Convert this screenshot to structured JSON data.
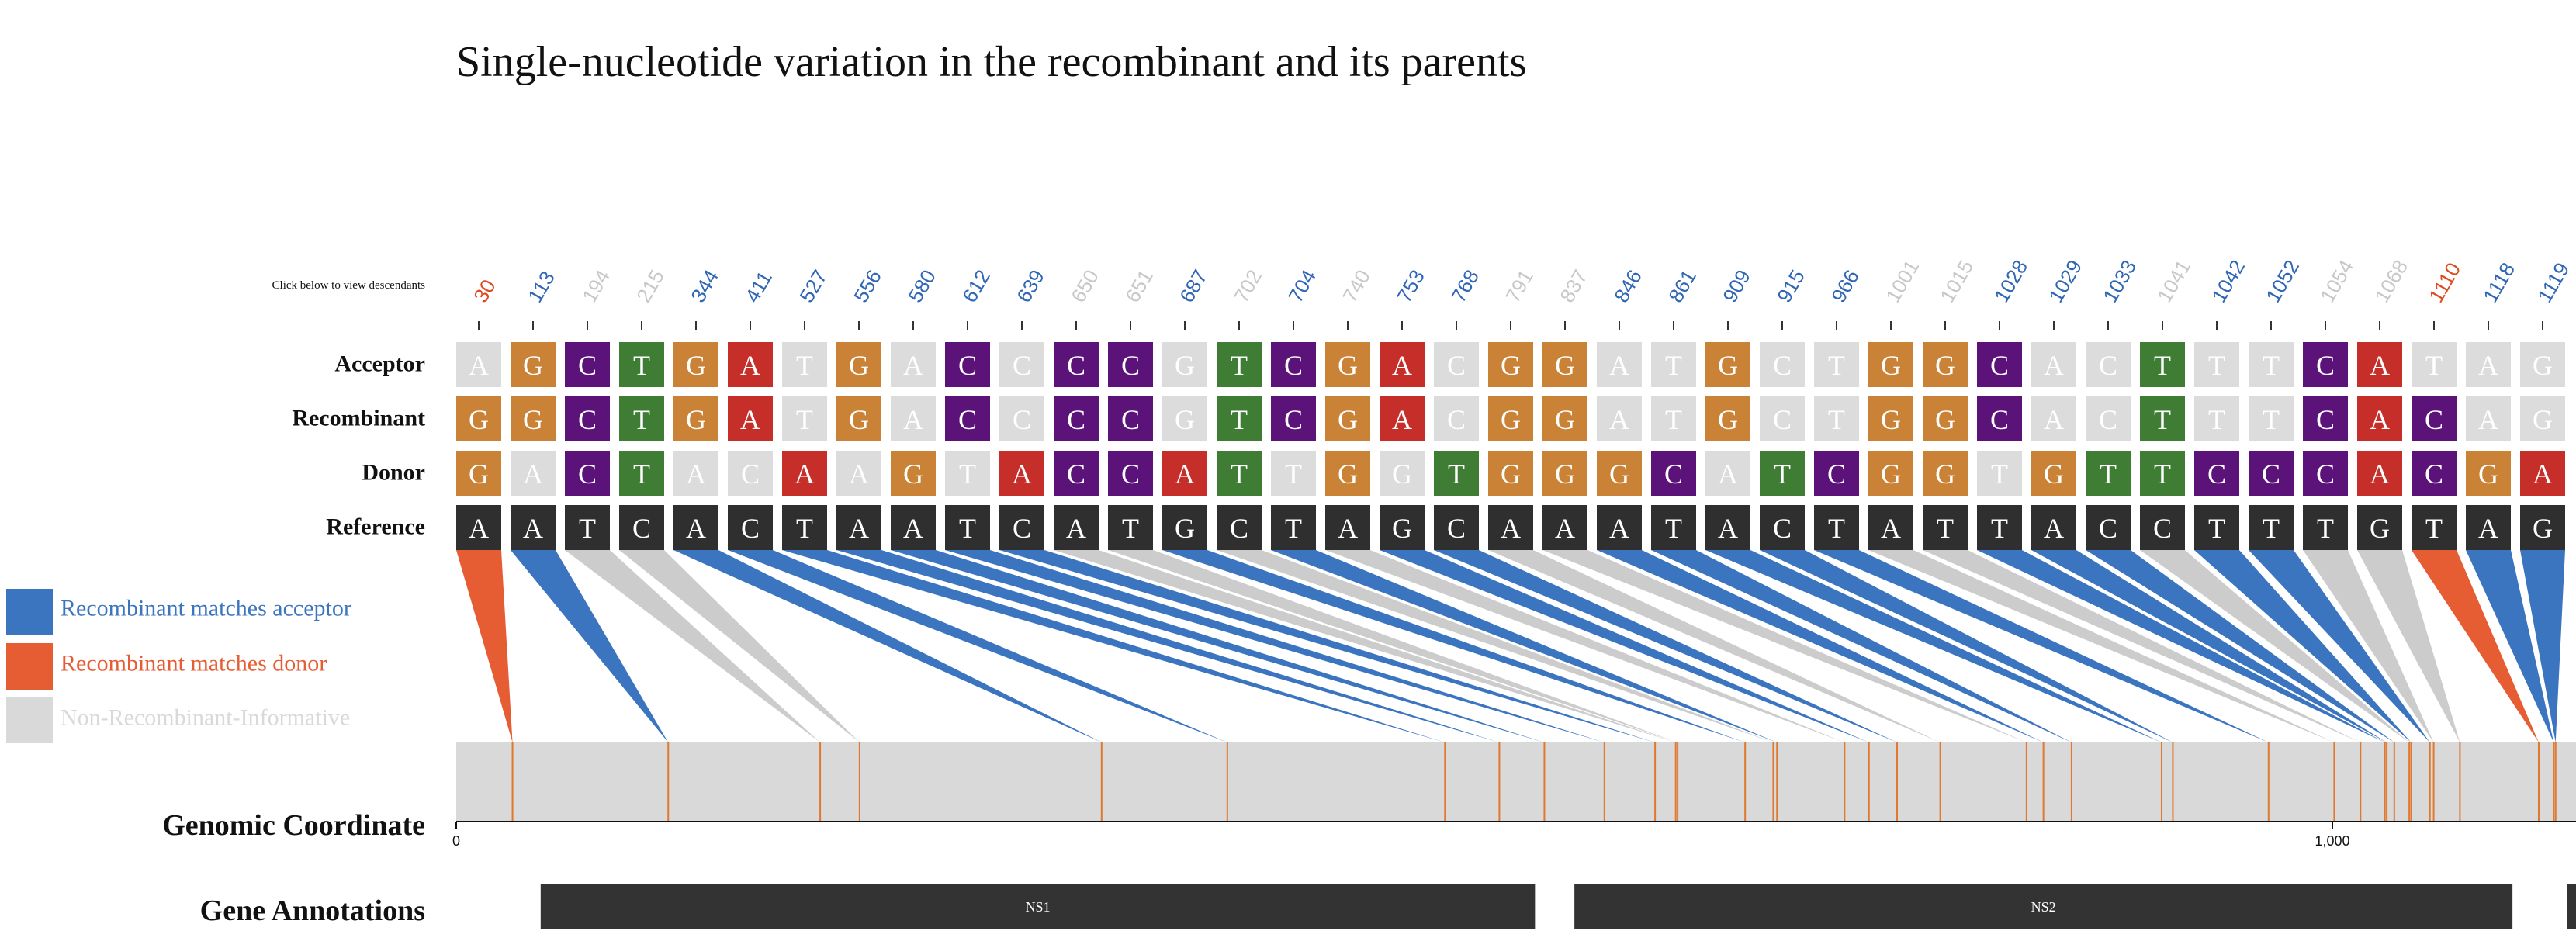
{
  "title": "Single-nucleotide variation in the recombinant and its parents",
  "hint": "Click below to view descendants",
  "rows": [
    "Acceptor",
    "Recombinant",
    "Donor",
    "Reference"
  ],
  "legend": [
    {
      "label": "Recombinant matches acceptor",
      "color": "#3b74bf"
    },
    {
      "label": "Recombinant matches donor",
      "color": "#e65c33"
    },
    {
      "label": "Non-Recombinant-Informative",
      "color": "#d9d9d9"
    }
  ],
  "colors": {
    "acceptor": "#3b74bf",
    "donor": "#e65c33",
    "uninformative": "#cccccc",
    "A": "#c62e2a",
    "C": "#5b137a",
    "G": "#c98236",
    "T": "#3f7d35",
    "match": "#dcdcdc",
    "reference": "#2f2f2f",
    "genome_track": "#d9d9d9",
    "snp_tick": "#e0782e"
  },
  "genome_axis": {
    "label": "Genomic Coordinate",
    "min": 0,
    "max": 1100,
    "ticks": [
      {
        "value": 0,
        "label": "0"
      },
      {
        "value": 1000,
        "label": "1,000"
      }
    ]
  },
  "genes_label": "Gene Annotations",
  "genes": [
    {
      "name": "NS1",
      "start": 45,
      "end": 575
    },
    {
      "name": "NS2",
      "start": 596,
      "end": 1096
    },
    {
      "name": "",
      "start": 1125,
      "end": 1200
    }
  ],
  "snvs": [
    {
      "pos": 30,
      "type": "donor",
      "acceptor": "A",
      "recombinant": "G",
      "donor": "G",
      "reference": "A"
    },
    {
      "pos": 113,
      "type": "acceptor",
      "acceptor": "G",
      "recombinant": "G",
      "donor": "A",
      "reference": "A"
    },
    {
      "pos": 194,
      "type": "uninformative",
      "acceptor": "C",
      "recombinant": "C",
      "donor": "C",
      "reference": "T"
    },
    {
      "pos": 215,
      "type": "uninformative",
      "acceptor": "T",
      "recombinant": "T",
      "donor": "T",
      "reference": "C"
    },
    {
      "pos": 344,
      "type": "acceptor",
      "acceptor": "G",
      "recombinant": "G",
      "donor": "A",
      "reference": "A"
    },
    {
      "pos": 411,
      "type": "acceptor",
      "acceptor": "A",
      "recombinant": "A",
      "donor": "C",
      "reference": "C"
    },
    {
      "pos": 527,
      "type": "acceptor",
      "acceptor": "T",
      "recombinant": "T",
      "donor": "A",
      "reference": "T"
    },
    {
      "pos": 556,
      "type": "acceptor",
      "acceptor": "G",
      "recombinant": "G",
      "donor": "A",
      "reference": "A"
    },
    {
      "pos": 580,
      "type": "acceptor",
      "acceptor": "A",
      "recombinant": "A",
      "donor": "G",
      "reference": "A"
    },
    {
      "pos": 612,
      "type": "acceptor",
      "acceptor": "C",
      "recombinant": "C",
      "donor": "T",
      "reference": "T"
    },
    {
      "pos": 639,
      "type": "acceptor",
      "acceptor": "C",
      "recombinant": "C",
      "donor": "A",
      "reference": "C"
    },
    {
      "pos": 650,
      "type": "uninformative",
      "acceptor": "C",
      "recombinant": "C",
      "donor": "C",
      "reference": "A"
    },
    {
      "pos": 651,
      "type": "uninformative",
      "acceptor": "C",
      "recombinant": "C",
      "donor": "C",
      "reference": "T"
    },
    {
      "pos": 687,
      "type": "acceptor",
      "acceptor": "G",
      "recombinant": "G",
      "donor": "A",
      "reference": "G"
    },
    {
      "pos": 702,
      "type": "uninformative",
      "acceptor": "T",
      "recombinant": "T",
      "donor": "T",
      "reference": "C"
    },
    {
      "pos": 704,
      "type": "acceptor",
      "acceptor": "C",
      "recombinant": "C",
      "donor": "T",
      "reference": "T"
    },
    {
      "pos": 740,
      "type": "uninformative",
      "acceptor": "G",
      "recombinant": "G",
      "donor": "G",
      "reference": "A"
    },
    {
      "pos": 753,
      "type": "acceptor",
      "acceptor": "A",
      "recombinant": "A",
      "donor": "G",
      "reference": "G"
    },
    {
      "pos": 768,
      "type": "acceptor",
      "acceptor": "C",
      "recombinant": "C",
      "donor": "T",
      "reference": "C"
    },
    {
      "pos": 791,
      "type": "uninformative",
      "acceptor": "G",
      "recombinant": "G",
      "donor": "G",
      "reference": "A"
    },
    {
      "pos": 837,
      "type": "uninformative",
      "acceptor": "G",
      "recombinant": "G",
      "donor": "G",
      "reference": "A"
    },
    {
      "pos": 846,
      "type": "acceptor",
      "acceptor": "A",
      "recombinant": "A",
      "donor": "G",
      "reference": "A"
    },
    {
      "pos": 861,
      "type": "acceptor",
      "acceptor": "T",
      "recombinant": "T",
      "donor": "C",
      "reference": "T"
    },
    {
      "pos": 909,
      "type": "acceptor",
      "acceptor": "G",
      "recombinant": "G",
      "donor": "A",
      "reference": "A"
    },
    {
      "pos": 915,
      "type": "acceptor",
      "acceptor": "C",
      "recombinant": "C",
      "donor": "T",
      "reference": "C"
    },
    {
      "pos": 966,
      "type": "acceptor",
      "acceptor": "T",
      "recombinant": "T",
      "donor": "C",
      "reference": "T"
    },
    {
      "pos": 1001,
      "type": "uninformative",
      "acceptor": "G",
      "recombinant": "G",
      "donor": "G",
      "reference": "A"
    },
    {
      "pos": 1015,
      "type": "uninformative",
      "acceptor": "G",
      "recombinant": "G",
      "donor": "G",
      "reference": "T"
    },
    {
      "pos": 1028,
      "type": "acceptor",
      "acceptor": "C",
      "recombinant": "C",
      "donor": "T",
      "reference": "T"
    },
    {
      "pos": 1029,
      "type": "acceptor",
      "acceptor": "A",
      "recombinant": "A",
      "donor": "G",
      "reference": "A"
    },
    {
      "pos": 1033,
      "type": "acceptor",
      "acceptor": "C",
      "recombinant": "C",
      "donor": "T",
      "reference": "C"
    },
    {
      "pos": 1041,
      "type": "uninformative",
      "acceptor": "T",
      "recombinant": "T",
      "donor": "T",
      "reference": "C"
    },
    {
      "pos": 1042,
      "type": "acceptor",
      "acceptor": "T",
      "recombinant": "T",
      "donor": "C",
      "reference": "T"
    },
    {
      "pos": 1052,
      "type": "acceptor",
      "acceptor": "T",
      "recombinant": "T",
      "donor": "C",
      "reference": "T"
    },
    {
      "pos": 1054,
      "type": "uninformative",
      "acceptor": "C",
      "recombinant": "C",
      "donor": "C",
      "reference": "T"
    },
    {
      "pos": 1068,
      "type": "uninformative",
      "acceptor": "A",
      "recombinant": "A",
      "donor": "A",
      "reference": "G"
    },
    {
      "pos": 1110,
      "type": "donor",
      "acceptor": "T",
      "recombinant": "C",
      "donor": "C",
      "reference": "T"
    },
    {
      "pos": 1118,
      "type": "acceptor",
      "acceptor": "A",
      "recombinant": "A",
      "donor": "G",
      "reference": "A"
    },
    {
      "pos": 1119,
      "type": "acceptor",
      "acceptor": "G",
      "recombinant": "G",
      "donor": "A",
      "reference": "G"
    }
  ]
}
